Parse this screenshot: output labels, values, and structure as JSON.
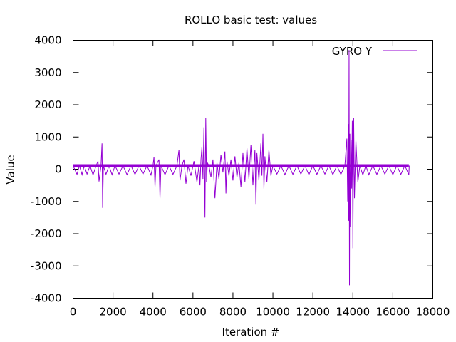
{
  "chart_data": {
    "type": "line",
    "title": "ROLLO  basic test: values",
    "xlabel": "Iteration #",
    "ylabel": "Value",
    "xlim": [
      0,
      18000
    ],
    "ylim": [
      -4000,
      4000
    ],
    "xticks": [
      "0",
      "2000",
      "4000",
      "6000",
      "8000",
      "10000",
      "12000",
      "14000",
      "16000",
      "18000"
    ],
    "yticks": [
      "-4000",
      "-3000",
      "-2000",
      "-1000",
      "0",
      "1000",
      "2000",
      "3000",
      "4000"
    ],
    "grid": false,
    "legend_position": "top-right",
    "series": [
      {
        "name": "GYRO Y",
        "color": "#9400d3",
        "x_range": [
          0,
          16800
        ],
        "baseline": 110,
        "points": [
          [
            0,
            110
          ],
          [
            200,
            -160
          ],
          [
            320,
            110
          ],
          [
            450,
            -170
          ],
          [
            560,
            110
          ],
          [
            700,
            -150
          ],
          [
            850,
            110
          ],
          [
            1000,
            -180
          ],
          [
            1150,
            100
          ],
          [
            1250,
            250
          ],
          [
            1300,
            -380
          ],
          [
            1400,
            110
          ],
          [
            1450,
            800
          ],
          [
            1480,
            -1200
          ],
          [
            1520,
            110
          ],
          [
            1650,
            -160
          ],
          [
            1800,
            110
          ],
          [
            1950,
            -170
          ],
          [
            2100,
            110
          ],
          [
            2300,
            -150
          ],
          [
            2500,
            110
          ],
          [
            2700,
            -170
          ],
          [
            2900,
            110
          ],
          [
            3100,
            -160
          ],
          [
            3300,
            110
          ],
          [
            3500,
            -150
          ],
          [
            3700,
            110
          ],
          [
            3900,
            -180
          ],
          [
            4000,
            110
          ],
          [
            4050,
            380
          ],
          [
            4100,
            -550
          ],
          [
            4150,
            110
          ],
          [
            4300,
            300
          ],
          [
            4350,
            -900
          ],
          [
            4400,
            110
          ],
          [
            4600,
            -170
          ],
          [
            4800,
            110
          ],
          [
            5000,
            -160
          ],
          [
            5200,
            110
          ],
          [
            5300,
            600
          ],
          [
            5350,
            -350
          ],
          [
            5450,
            110
          ],
          [
            5550,
            300
          ],
          [
            5650,
            -450
          ],
          [
            5750,
            110
          ],
          [
            5900,
            -200
          ],
          [
            6050,
            250
          ],
          [
            6200,
            -400
          ],
          [
            6300,
            110
          ],
          [
            6350,
            -500
          ],
          [
            6400,
            300
          ],
          [
            6450,
            700
          ],
          [
            6500,
            -300
          ],
          [
            6550,
            1300
          ],
          [
            6600,
            -1500
          ],
          [
            6640,
            1600
          ],
          [
            6680,
            -400
          ],
          [
            6720,
            200
          ],
          [
            6800,
            110
          ],
          [
            6900,
            -250
          ],
          [
            7000,
            300
          ],
          [
            7100,
            -900
          ],
          [
            7200,
            200
          ],
          [
            7300,
            -300
          ],
          [
            7400,
            450
          ],
          [
            7500,
            -100
          ],
          [
            7600,
            550
          ],
          [
            7650,
            -750
          ],
          [
            7700,
            250
          ],
          [
            7800,
            -200
          ],
          [
            7900,
            300
          ],
          [
            8000,
            -350
          ],
          [
            8100,
            400
          ],
          [
            8200,
            -250
          ],
          [
            8300,
            200
          ],
          [
            8400,
            -550
          ],
          [
            8500,
            500
          ],
          [
            8600,
            -400
          ],
          [
            8700,
            650
          ],
          [
            8800,
            -300
          ],
          [
            8900,
            750
          ],
          [
            9000,
            -500
          ],
          [
            9100,
            600
          ],
          [
            9150,
            -1100
          ],
          [
            9200,
            500
          ],
          [
            9300,
            -350
          ],
          [
            9400,
            800
          ],
          [
            9450,
            -200
          ],
          [
            9500,
            1100
          ],
          [
            9550,
            -600
          ],
          [
            9600,
            400
          ],
          [
            9700,
            -400
          ],
          [
            9800,
            600
          ],
          [
            9900,
            -200
          ],
          [
            10000,
            110
          ],
          [
            10200,
            -150
          ],
          [
            10400,
            110
          ],
          [
            10600,
            -170
          ],
          [
            10800,
            110
          ],
          [
            11000,
            -160
          ],
          [
            11200,
            110
          ],
          [
            11400,
            -150
          ],
          [
            11600,
            110
          ],
          [
            11800,
            -170
          ],
          [
            12000,
            110
          ],
          [
            12200,
            -160
          ],
          [
            12400,
            110
          ],
          [
            12600,
            -150
          ],
          [
            12800,
            110
          ],
          [
            13000,
            -170
          ],
          [
            13200,
            110
          ],
          [
            13400,
            -160
          ],
          [
            13600,
            110
          ],
          [
            13700,
            950
          ],
          [
            13740,
            -1000
          ],
          [
            13770,
            1400
          ],
          [
            13790,
            -1600
          ],
          [
            13810,
            3700
          ],
          [
            13830,
            -3600
          ],
          [
            13850,
            1100
          ],
          [
            13880,
            -1800
          ],
          [
            13910,
            900
          ],
          [
            13940,
            -600
          ],
          [
            13970,
            1500
          ],
          [
            14000,
            -2450
          ],
          [
            14040,
            1600
          ],
          [
            14080,
            -900
          ],
          [
            14150,
            900
          ],
          [
            14250,
            -400
          ],
          [
            14350,
            110
          ],
          [
            14500,
            -180
          ],
          [
            14650,
            110
          ],
          [
            14800,
            -170
          ],
          [
            15000,
            110
          ],
          [
            15200,
            -160
          ],
          [
            15400,
            110
          ],
          [
            15600,
            -150
          ],
          [
            15800,
            110
          ],
          [
            16000,
            -170
          ],
          [
            16200,
            110
          ],
          [
            16400,
            -160
          ],
          [
            16600,
            110
          ],
          [
            16800,
            -170
          ],
          [
            16820,
            110
          ]
        ]
      }
    ]
  }
}
